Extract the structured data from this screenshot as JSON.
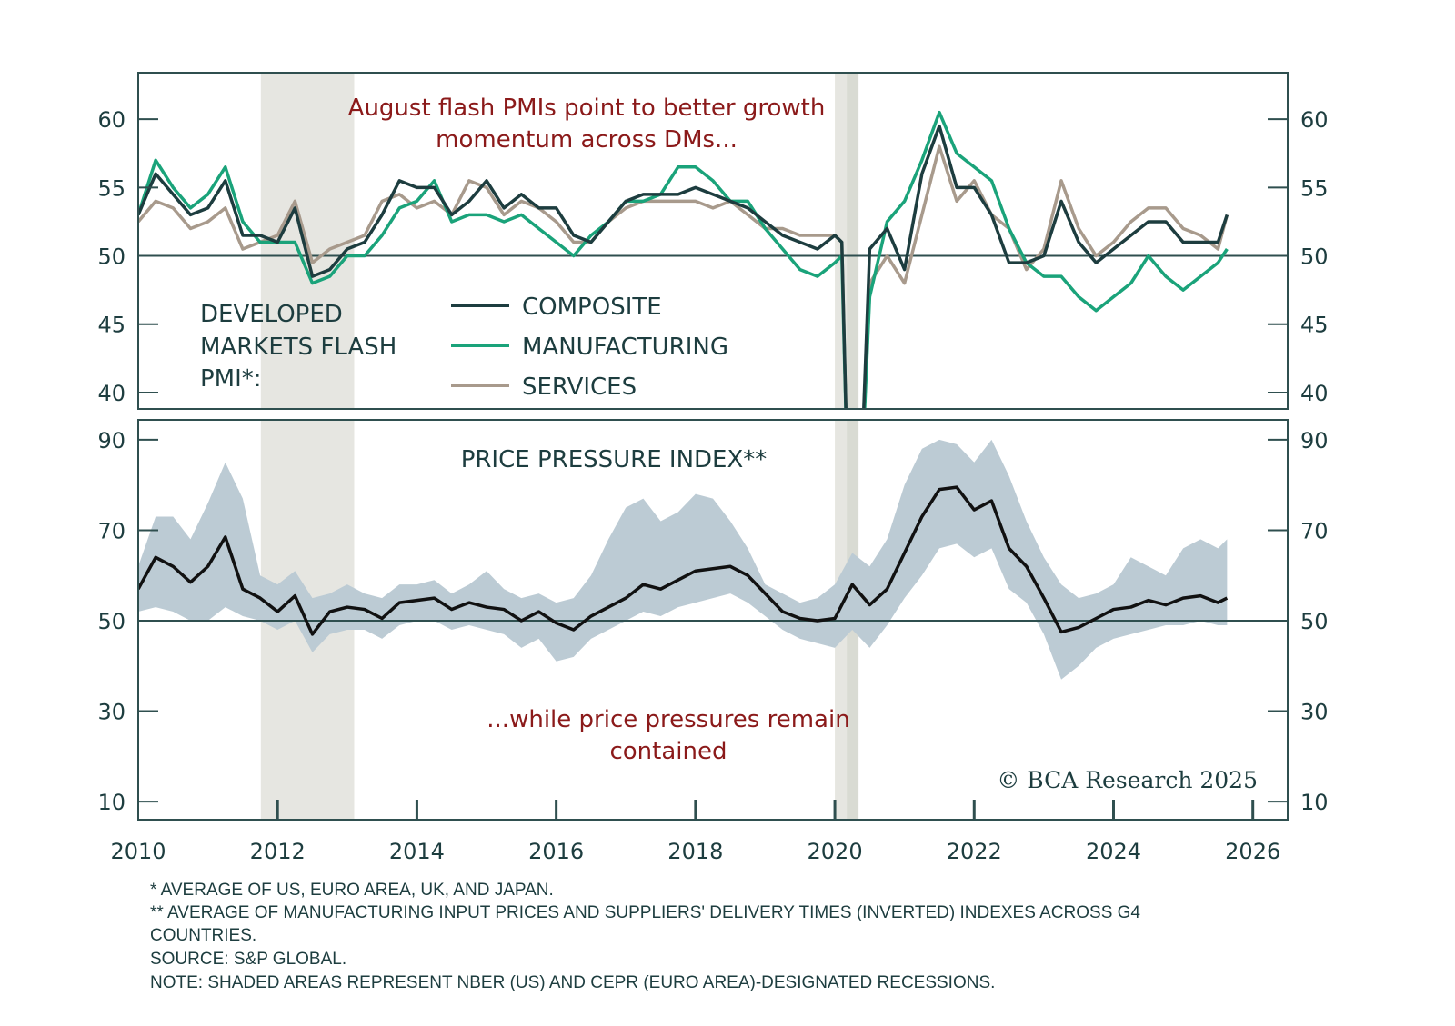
{
  "colors": {
    "composite": "#1d3d3f",
    "manufacturing": "#1aa37a",
    "services": "#a89a8c",
    "band": "#bccbd4",
    "recession": "#e6e6e1",
    "annotation": "#8b1a1a",
    "axis": "#2f4f4f"
  },
  "chart_data": [
    {
      "type": "line",
      "title": "DEVELOPED MARKETS FLASH PMI*:",
      "title_lines": [
        "DEVELOPED",
        "MARKETS FLASH",
        "PMI*:"
      ],
      "annotation_lines": [
        "August flash PMIs point to better growth",
        "momentum across DMs..."
      ],
      "ylim": [
        38.8,
        63.4
      ],
      "xlim": [
        2010,
        2026.5
      ],
      "yticks": [
        40,
        45,
        50,
        55,
        60
      ],
      "ytick_labels": [
        "40",
        "45",
        "50",
        "55",
        "60"
      ],
      "reference_line": 50,
      "legend_placement": "bottom-center",
      "recessions": [
        [
          2011.76,
          2013.1
        ],
        [
          2020.0,
          2020.17
        ],
        [
          2020.17,
          2020.34
        ]
      ],
      "x": [
        2010,
        2010.25,
        2010.5,
        2010.75,
        2011,
        2011.25,
        2011.5,
        2011.75,
        2012,
        2012.25,
        2012.5,
        2012.75,
        2013,
        2013.25,
        2013.5,
        2013.75,
        2014,
        2014.25,
        2014.5,
        2014.75,
        2015,
        2015.25,
        2015.5,
        2015.75,
        2016,
        2016.25,
        2016.5,
        2016.75,
        2017,
        2017.25,
        2017.5,
        2017.75,
        2018,
        2018.25,
        2018.5,
        2018.75,
        2019,
        2019.25,
        2019.5,
        2019.75,
        2020,
        2020.1,
        2020.2,
        2020.35,
        2020.5,
        2020.75,
        2021,
        2021.25,
        2021.5,
        2021.75,
        2022,
        2022.25,
        2022.5,
        2022.75,
        2023,
        2023.25,
        2023.5,
        2023.75,
        2024,
        2024.25,
        2024.5,
        2024.75,
        2025,
        2025.25,
        2025.5,
        2025.63
      ],
      "series": [
        {
          "name": "COMPOSITE",
          "key": "composite",
          "values": [
            53,
            56,
            54.5,
            53,
            53.5,
            55.5,
            51.5,
            51.5,
            51,
            53.5,
            48.5,
            49,
            50.5,
            51,
            53,
            55.5,
            55,
            55,
            53,
            54,
            55.5,
            53.5,
            54.5,
            53.5,
            53.5,
            51.5,
            51,
            52.5,
            54,
            54.5,
            54.5,
            54.5,
            55,
            54.5,
            54,
            53.5,
            52.5,
            51.5,
            51,
            50.5,
            51.5,
            51,
            30,
            30,
            50.5,
            52,
            49,
            56,
            59.5,
            55,
            55,
            53,
            49.5,
            49.5,
            50,
            54,
            51,
            49.5,
            50.5,
            51.5,
            52.5,
            52.5,
            51,
            51,
            51,
            53
          ]
        },
        {
          "name": "MANUFACTURING",
          "key": "manufacturing",
          "values": [
            53,
            57,
            55,
            53.5,
            54.5,
            56.5,
            52.5,
            51,
            51,
            51,
            48,
            48.5,
            50,
            50,
            51.5,
            53.5,
            54,
            55.5,
            52.5,
            53,
            53,
            52.5,
            53,
            52,
            51,
            50,
            51.5,
            52.5,
            54,
            54,
            54.5,
            56.5,
            56.5,
            55.5,
            54,
            54,
            52,
            50.5,
            49,
            48.5,
            49.5,
            50,
            30,
            30,
            47,
            52.5,
            54,
            57,
            60.5,
            57.5,
            56.5,
            55.5,
            52,
            49.5,
            48.5,
            48.5,
            47,
            46,
            47,
            48,
            50,
            48.5,
            47.5,
            48.5,
            49.5,
            50.5
          ]
        },
        {
          "name": "SERVICES",
          "key": "services",
          "values": [
            52.5,
            54,
            53.5,
            52,
            52.5,
            53.5,
            50.5,
            51,
            51.5,
            54,
            49.5,
            50.5,
            51,
            51.5,
            54,
            54.5,
            53.5,
            54,
            53,
            55.5,
            55,
            53,
            54,
            53.5,
            52.5,
            51,
            51,
            52.5,
            53.5,
            54,
            54,
            54,
            54,
            53.5,
            54,
            53,
            52,
            52,
            51.5,
            51.5,
            51.5,
            51,
            30,
            30,
            48,
            50,
            48,
            53,
            58,
            54,
            55.5,
            53,
            52,
            49,
            50.5,
            55.5,
            52,
            50,
            51,
            52.5,
            53.5,
            53.5,
            52,
            51.5,
            50.5,
            53
          ]
        }
      ]
    },
    {
      "type": "area",
      "title": "PRICE PRESSURE INDEX**",
      "annotation_lines": [
        "...while price pressures remain",
        "contained"
      ],
      "ylim": [
        6,
        94.4
      ],
      "xlim": [
        2010,
        2026.5
      ],
      "yticks": [
        10,
        30,
        50,
        70,
        90
      ],
      "ytick_labels": [
        "10",
        "30",
        "50",
        "70",
        "90"
      ],
      "xticks": [
        2010,
        2012,
        2014,
        2016,
        2018,
        2020,
        2022,
        2024,
        2026
      ],
      "xtick_labels": [
        "2010",
        "2012",
        "2014",
        "2016",
        "2018",
        "2020",
        "2022",
        "2024",
        "2026"
      ],
      "reference_line": 50,
      "recessions": [
        [
          2011.76,
          2013.1
        ],
        [
          2020.0,
          2020.17
        ],
        [
          2020.17,
          2020.34
        ]
      ],
      "x": [
        2010,
        2010.25,
        2010.5,
        2010.75,
        2011,
        2011.25,
        2011.5,
        2011.75,
        2012,
        2012.25,
        2012.5,
        2012.75,
        2013,
        2013.25,
        2013.5,
        2013.75,
        2014,
        2014.25,
        2014.5,
        2014.75,
        2015,
        2015.25,
        2015.5,
        2015.75,
        2016,
        2016.25,
        2016.5,
        2016.75,
        2017,
        2017.25,
        2017.5,
        2017.75,
        2018,
        2018.25,
        2018.5,
        2018.75,
        2019,
        2019.25,
        2019.5,
        2019.75,
        2020,
        2020.25,
        2020.5,
        2020.75,
        2021,
        2021.25,
        2021.5,
        2021.75,
        2022,
        2022.25,
        2022.5,
        2022.75,
        2023,
        2023.25,
        2023.5,
        2023.75,
        2024,
        2024.25,
        2024.5,
        2024.75,
        2025,
        2025.25,
        2025.5,
        2025.63
      ],
      "series": [
        {
          "name": "Price pressure index",
          "values": [
            57,
            64,
            62,
            58.5,
            62,
            68.5,
            57,
            55,
            52,
            55.5,
            47,
            52,
            53,
            52.5,
            50.5,
            54,
            54.5,
            55,
            52.5,
            54,
            53,
            52.5,
            50,
            52,
            49.5,
            48,
            51,
            53,
            55,
            58,
            57,
            59,
            61,
            61.5,
            62,
            60,
            56,
            52,
            50.5,
            50,
            50.5,
            58,
            53.5,
            57,
            65,
            73,
            79,
            79.5,
            74.5,
            76.5,
            66,
            62,
            55,
            47.5,
            48.5,
            50.5,
            52.5,
            53,
            54.5,
            53.5,
            55,
            55.5,
            54,
            55
          ]
        },
        {
          "name": "Range high",
          "values": [
            62,
            73,
            73,
            68,
            76,
            85,
            77,
            60,
            58,
            61,
            55,
            56,
            58,
            56,
            55,
            58,
            58,
            59,
            56,
            58,
            61,
            57,
            55,
            56,
            54,
            55,
            60,
            68,
            75,
            77,
            72,
            74,
            78,
            77,
            72,
            66,
            58,
            56,
            54,
            55,
            58,
            65,
            62,
            68,
            80,
            88,
            90,
            89,
            85,
            90,
            82,
            72,
            64,
            58,
            55,
            56,
            58,
            64,
            62,
            60,
            66,
            68,
            66,
            68
          ]
        },
        {
          "name": "Range low",
          "values": [
            52,
            53,
            52,
            50,
            50,
            53,
            51,
            50,
            48,
            50,
            43,
            47,
            48,
            48,
            46,
            49,
            50,
            50,
            48,
            49,
            48,
            47,
            44,
            46,
            41,
            42,
            46,
            48,
            50,
            52,
            51,
            53,
            54,
            55,
            56,
            54,
            51,
            48,
            46,
            45,
            44,
            48,
            44,
            49,
            55,
            60,
            66,
            67,
            64,
            66,
            57,
            54,
            47,
            37,
            40,
            44,
            46,
            47,
            48,
            49,
            49,
            50,
            49,
            49
          ]
        }
      ]
    }
  ],
  "copyright": "© BCA Research 2025",
  "footnotes": [
    "* AVERAGE OF US, EURO AREA, UK, AND JAPAN.",
    "** AVERAGE OF MANUFACTURING INPUT PRICES AND SUPPLIERS' DELIVERY TIMES (INVERTED) INDEXES ACROSS G4",
    "COUNTRIES.",
    "SOURCE: S&P GLOBAL.",
    "NOTE: SHADED AREAS REPRESENT NBER (US) AND CEPR (EURO AREA)-DESIGNATED RECESSIONS."
  ]
}
